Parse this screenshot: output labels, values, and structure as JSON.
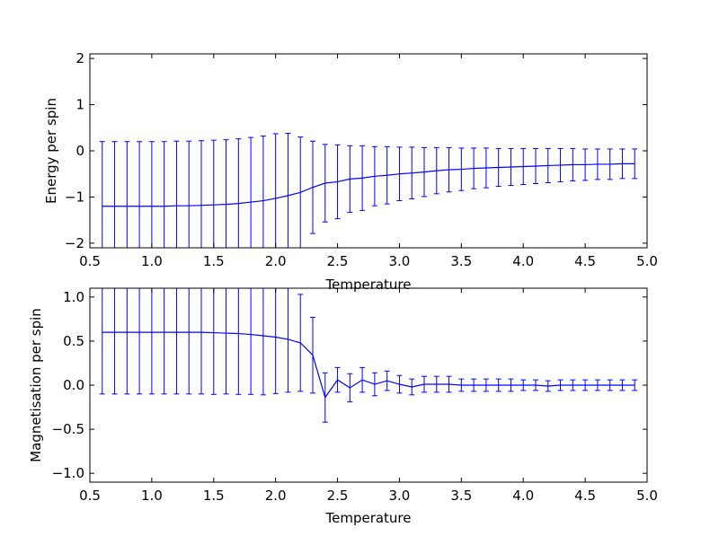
{
  "chart_data": [
    {
      "type": "line",
      "error_bars": true,
      "title": "",
      "xlabel": "Temperature",
      "ylabel": "Energy per spin",
      "xlim": [
        0.5,
        5.0
      ],
      "ylim": [
        -2.1,
        2.1
      ],
      "xticks": [
        "0.5",
        "1.0",
        "1.5",
        "2.0",
        "2.5",
        "3.0",
        "3.5",
        "4.0",
        "4.5",
        "5.0"
      ],
      "yticks": [
        "−2",
        "−1",
        "0",
        "1",
        "2"
      ],
      "grid": false,
      "line_color": "#0000ff",
      "series": [
        {
          "x": [
            0.6,
            0.7,
            0.8,
            0.9,
            1.0,
            1.1,
            1.2,
            1.3,
            1.4,
            1.5,
            1.6,
            1.7,
            1.8,
            1.9,
            2.0,
            2.1,
            2.2,
            2.3,
            2.4,
            2.5,
            2.6,
            2.7,
            2.8,
            2.9,
            3.0,
            3.1,
            3.2,
            3.3,
            3.4,
            3.5,
            3.6,
            3.7,
            3.8,
            3.9,
            4.0,
            4.1,
            4.2,
            4.3,
            4.4,
            4.5,
            4.6,
            4.7,
            4.8,
            4.9
          ],
          "y": [
            -1.2,
            -1.2,
            -1.2,
            -1.2,
            -1.2,
            -1.2,
            -1.19,
            -1.19,
            -1.18,
            -1.17,
            -1.16,
            -1.14,
            -1.11,
            -1.08,
            -1.03,
            -0.97,
            -0.9,
            -0.79,
            -0.7,
            -0.67,
            -0.61,
            -0.59,
            -0.55,
            -0.53,
            -0.5,
            -0.48,
            -0.46,
            -0.43,
            -0.41,
            -0.4,
            -0.38,
            -0.37,
            -0.36,
            -0.35,
            -0.34,
            -0.33,
            -0.32,
            -0.31,
            -0.3,
            -0.3,
            -0.29,
            -0.29,
            -0.28,
            -0.28
          ],
          "yerr": [
            1.4,
            1.4,
            1.4,
            1.4,
            1.4,
            1.4,
            1.4,
            1.4,
            1.4,
            1.4,
            1.4,
            1.4,
            1.4,
            1.4,
            1.4,
            1.35,
            1.2,
            1.0,
            0.84,
            0.8,
            0.72,
            0.7,
            0.64,
            0.62,
            0.58,
            0.56,
            0.53,
            0.5,
            0.48,
            0.46,
            0.44,
            0.43,
            0.41,
            0.4,
            0.39,
            0.38,
            0.37,
            0.36,
            0.35,
            0.34,
            0.33,
            0.33,
            0.32,
            0.32
          ]
        }
      ]
    },
    {
      "type": "line",
      "error_bars": true,
      "title": "",
      "xlabel": "Temperature",
      "ylabel": "Magnetisation per spin",
      "xlim": [
        0.5,
        5.0
      ],
      "ylim": [
        -1.1,
        1.1
      ],
      "xticks": [
        "0.5",
        "1.0",
        "1.5",
        "2.0",
        "2.5",
        "3.0",
        "3.5",
        "4.0",
        "4.5",
        "5.0"
      ],
      "yticks": [
        "−1.0",
        "−0.5",
        "0.0",
        "0.5",
        "1.0"
      ],
      "grid": false,
      "line_color": "#0000ff",
      "series": [
        {
          "x": [
            0.6,
            0.7,
            0.8,
            0.9,
            1.0,
            1.1,
            1.2,
            1.3,
            1.4,
            1.5,
            1.6,
            1.7,
            1.8,
            1.9,
            2.0,
            2.1,
            2.2,
            2.3,
            2.4,
            2.5,
            2.6,
            2.7,
            2.8,
            2.9,
            3.0,
            3.1,
            3.2,
            3.3,
            3.4,
            3.5,
            3.6,
            3.7,
            3.8,
            3.9,
            4.0,
            4.1,
            4.2,
            4.3,
            4.4,
            4.5,
            4.6,
            4.7,
            4.8,
            4.9
          ],
          "y": [
            0.6,
            0.6,
            0.6,
            0.6,
            0.6,
            0.6,
            0.6,
            0.6,
            0.6,
            0.595,
            0.59,
            0.585,
            0.575,
            0.56,
            0.545,
            0.52,
            0.48,
            0.34,
            -0.14,
            0.06,
            -0.03,
            0.06,
            0.01,
            0.05,
            0.01,
            -0.02,
            0.01,
            0.01,
            0.01,
            0.0,
            0.0,
            0.0,
            0.0,
            0.0,
            0.0,
            0.0,
            -0.01,
            0.0,
            0.0,
            0.0,
            0.0,
            0.0,
            0.0,
            0.0
          ],
          "yerr": [
            0.7,
            0.7,
            0.7,
            0.7,
            0.7,
            0.7,
            0.7,
            0.7,
            0.7,
            0.7,
            0.69,
            0.69,
            0.68,
            0.67,
            0.64,
            0.6,
            0.55,
            0.43,
            0.28,
            0.14,
            0.16,
            0.14,
            0.13,
            0.11,
            0.1,
            0.09,
            0.09,
            0.09,
            0.09,
            0.07,
            0.07,
            0.07,
            0.07,
            0.07,
            0.06,
            0.06,
            0.06,
            0.06,
            0.06,
            0.06,
            0.06,
            0.06,
            0.06,
            0.06
          ]
        }
      ]
    }
  ]
}
